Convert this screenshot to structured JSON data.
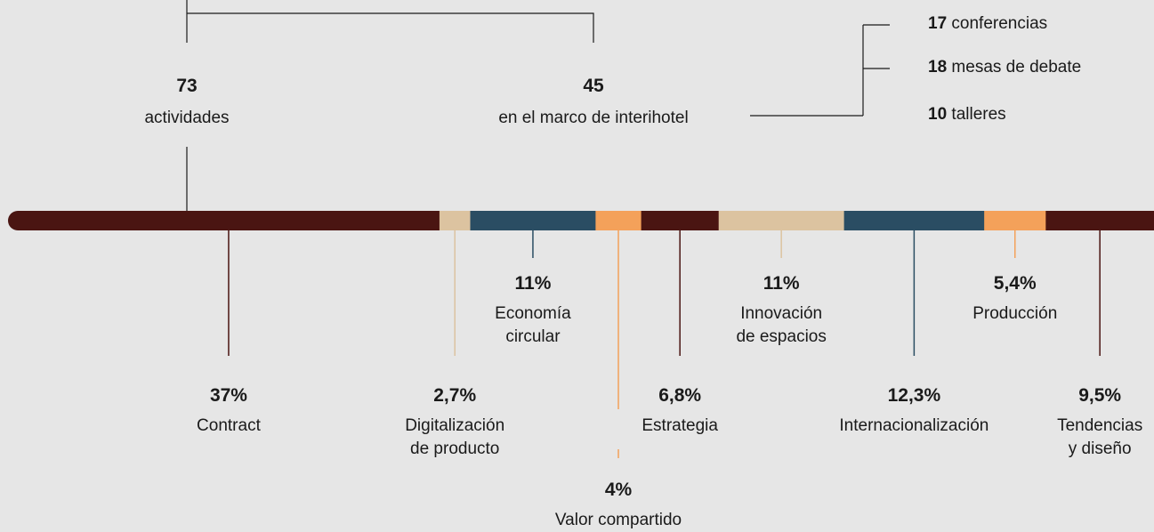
{
  "header": {
    "total": {
      "value": 73,
      "label": "actividades"
    },
    "interihotel": {
      "value": 45,
      "label": "en el marco de interihotel"
    },
    "breakdown": [
      {
        "value": 17,
        "label": "conferencias"
      },
      {
        "value": 18,
        "label": "mesas de debate"
      },
      {
        "value": 10,
        "label": "talleres"
      }
    ]
  },
  "chart_data": {
    "type": "segmented-bar",
    "categories": [
      "Contract",
      "Digitalización\nde producto",
      "Economía\ncircular",
      "Valor compartido",
      "Estrategia",
      "Innovación\nde espacios",
      "Internacionalización",
      "Producción",
      "Tendencias\ny diseño"
    ],
    "values": [
      37,
      2.7,
      11,
      4,
      6.8,
      11,
      12.3,
      5.4,
      9.5
    ],
    "value_labels": [
      "37%",
      "2,7%",
      "11%",
      "4%",
      "6,8%",
      "11%",
      "12,3%",
      "5,4%",
      "9,5%"
    ],
    "colors": [
      "#4a1512",
      "#dcc3a0",
      "#2a4d63",
      "#f4a15a",
      "#4a1512",
      "#dcc3a0",
      "#2a4d63",
      "#f4a15a",
      "#4a1512"
    ]
  }
}
